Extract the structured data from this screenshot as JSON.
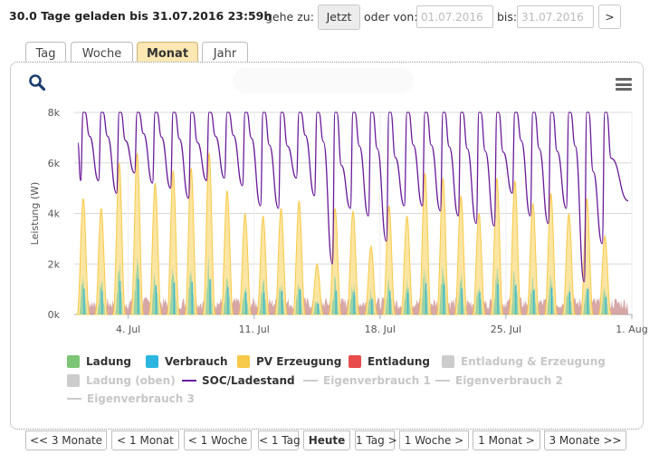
{
  "header": {
    "status": "30.0 Tage geladen bis 31.07.2016 23:59h",
    "goto_label": "gehe zu:",
    "now_button": "Jetzt",
    "or_from_label": "oder von:",
    "from_placeholder": "01.07.2016",
    "to_label": "bis:",
    "to_placeholder": "31.07.2016",
    "go_button": ">"
  },
  "tabs": [
    {
      "label": "Tag",
      "active": false
    },
    {
      "label": "Woche",
      "active": false
    },
    {
      "label": "Monat",
      "active": true
    },
    {
      "label": "Jahr",
      "active": false
    }
  ],
  "icons": {
    "zoom": "zoom-icon",
    "menu": "hamburger-menu-icon"
  },
  "chart_data": {
    "type": "area",
    "title": "",
    "ylabel": "Leistung (W)",
    "y_ticks": [
      "0k",
      "2k",
      "4k",
      "6k",
      "8k"
    ],
    "ylim": [
      0,
      8000
    ],
    "x_ticks": [
      "4. Jul",
      "11. Jul",
      "18. Jul",
      "25. Jul",
      "1. Aug"
    ],
    "x_range_days": [
      0,
      31
    ],
    "x_tick_days": [
      3,
      10,
      17,
      24,
      31
    ],
    "grid": true,
    "colors": {
      "ladung": "#7cc576",
      "verbrauch": "#2bb5e0",
      "pv": "#f7c948",
      "pv_fill": "#fbe5a2",
      "entladung": "#e84c4c",
      "soc": "#6a1b9a",
      "hidden": "#cccccc"
    },
    "pv_daily_peak_w": [
      4600,
      4200,
      6000,
      6400,
      5200,
      5700,
      5800,
      6400,
      4900,
      4000,
      3900,
      4200,
      4500,
      2000,
      4200,
      4100,
      2700,
      4300,
      3900,
      5600,
      5400,
      4700,
      4000,
      5400,
      5300,
      4400,
      4800,
      4000,
      4600,
      3100
    ],
    "soc_daily_max_w": [
      8000,
      8000,
      8000,
      8000,
      8000,
      8000,
      8000,
      8000,
      8000,
      8000,
      8000,
      8000,
      8000,
      8000,
      8000,
      8000,
      8000,
      8000,
      8000,
      8000,
      8000,
      8000,
      8000,
      8000,
      8000,
      8000,
      8000,
      8000,
      8000,
      8000
    ],
    "soc_daily_min_w": [
      5300,
      5300,
      4800,
      5600,
      5200,
      5000,
      4600,
      5300,
      5400,
      5100,
      4300,
      4200,
      5400,
      4700,
      2000,
      4200,
      3900,
      2900,
      4300,
      4300,
      4100,
      3900,
      3600,
      3500,
      4800,
      3900,
      3600,
      4200,
      1300,
      2800
    ]
  },
  "legend": [
    {
      "name": "Ladung",
      "color": "#7cc576",
      "kind": "swatch",
      "visible": true
    },
    {
      "name": "Verbrauch",
      "color": "#2bb5e0",
      "kind": "swatch",
      "visible": true
    },
    {
      "name": "PV Erzeugung",
      "color": "#f7c948",
      "kind": "swatch",
      "visible": true
    },
    {
      "name": "Entladung",
      "color": "#e84c4c",
      "kind": "swatch",
      "visible": true
    },
    {
      "name": "Entladung & Erzeugung",
      "color": "#cccccc",
      "kind": "swatch",
      "visible": false
    },
    {
      "name": "Ladung (oben)",
      "color": "#cccccc",
      "kind": "swatch",
      "visible": false
    },
    {
      "name": "SOC/Ladestand",
      "color": "#6a1b9a",
      "kind": "line",
      "visible": true
    },
    {
      "name": "Eigenverbrauch 1",
      "color": "#cccccc",
      "kind": "line",
      "visible": false
    },
    {
      "name": "Eigenverbrauch 2",
      "color": "#cccccc",
      "kind": "line",
      "visible": false
    },
    {
      "name": "Eigenverbrauch 3",
      "color": "#cccccc",
      "kind": "line",
      "visible": false
    }
  ],
  "nav": [
    "<< 3 Monate",
    "< 1 Monat",
    "< 1 Woche",
    "< 1 Tag",
    "Heute",
    "1 Tag >",
    "1 Woche >",
    "1 Monat >",
    "3 Monate >>"
  ]
}
